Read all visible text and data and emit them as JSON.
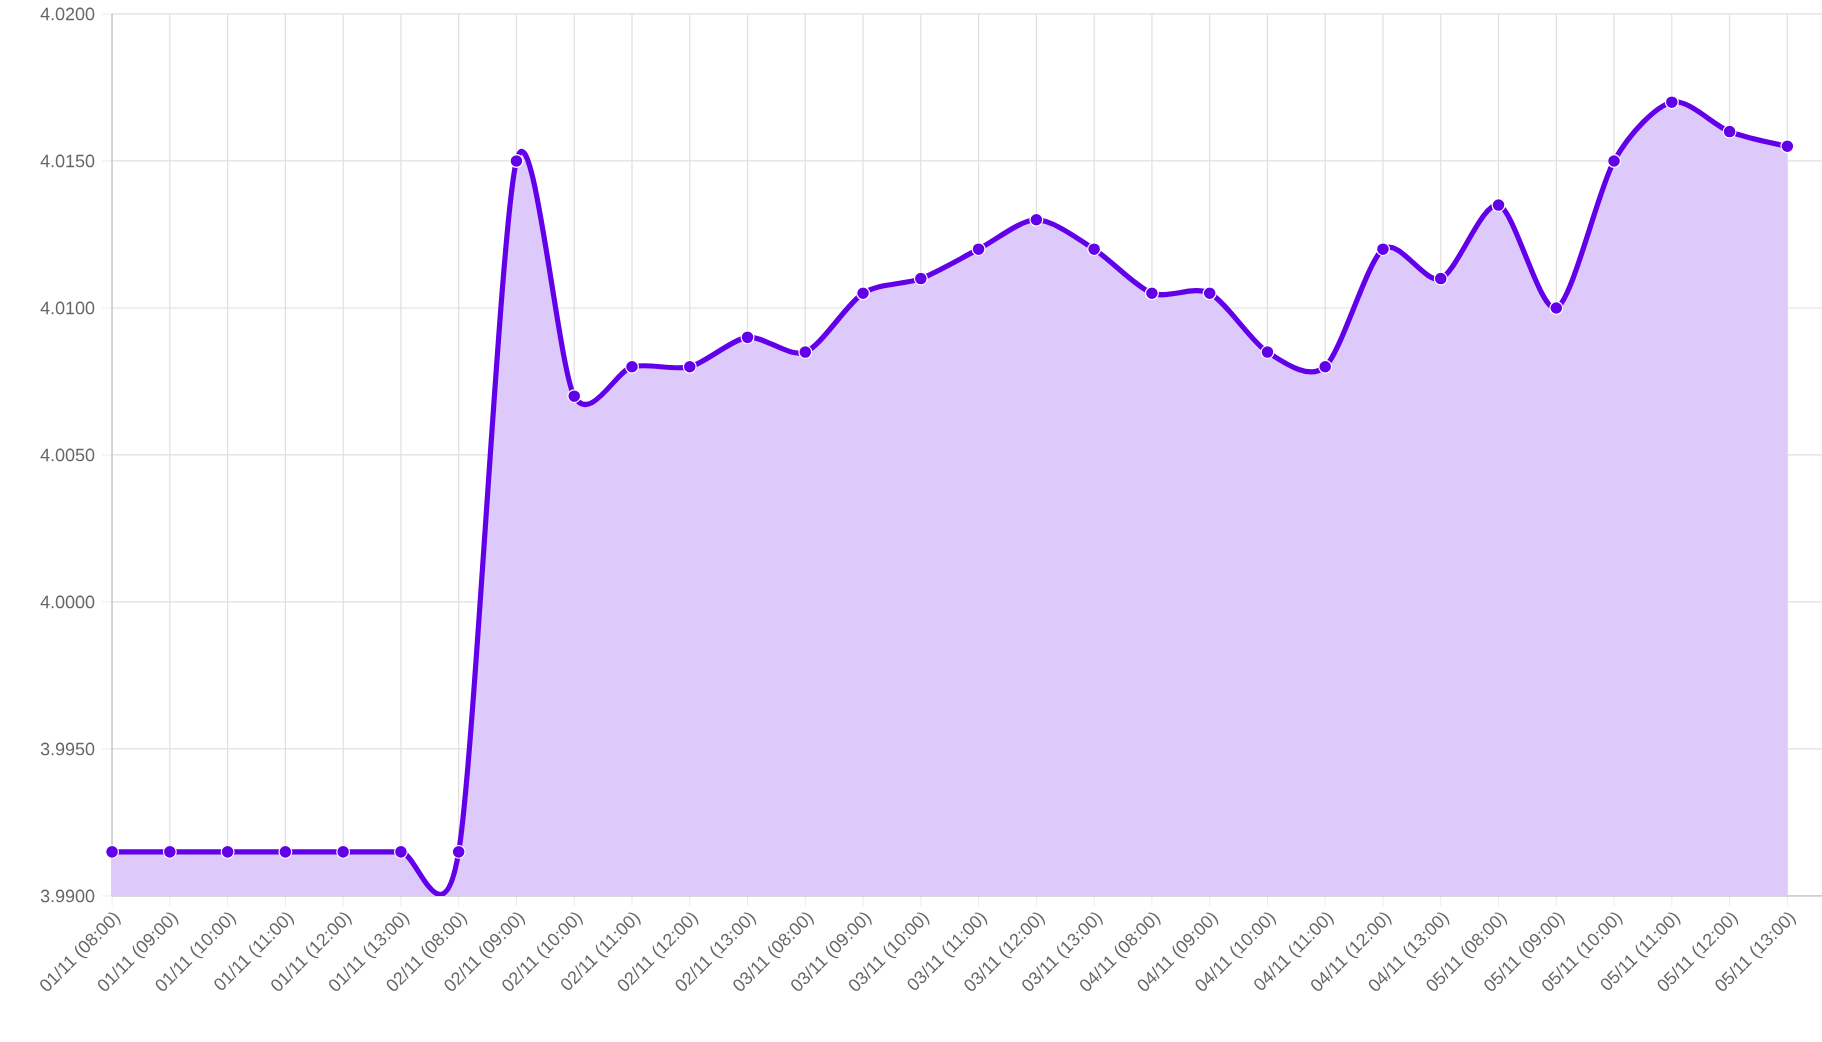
{
  "chart_data": {
    "type": "area",
    "color": "#6200ea",
    "marker": "circle",
    "grid": true,
    "categories": [
      "01/11 (08:00)",
      "01/11 (09:00)",
      "01/11 (10:00)",
      "01/11 (11:00)",
      "01/11 (12:00)",
      "01/11 (13:00)",
      "02/11 (08:00)",
      "02/11 (09:00)",
      "02/11 (10:00)",
      "02/11 (11:00)",
      "02/11 (12:00)",
      "02/11 (13:00)",
      "03/11 (08:00)",
      "03/11 (09:00)",
      "03/11 (10:00)",
      "03/11 (11:00)",
      "03/11 (12:00)",
      "03/11 (13:00)",
      "04/11 (08:00)",
      "04/11 (09:00)",
      "04/11 (10:00)",
      "04/11 (11:00)",
      "04/11 (12:00)",
      "04/11 (13:00)",
      "05/11 (08:00)",
      "05/11 (09:00)",
      "05/11 (10:00)",
      "05/11 (11:00)",
      "05/11 (12:00)",
      "05/11 (13:00)"
    ],
    "values": [
      3.9915,
      3.9915,
      3.9915,
      3.9915,
      3.9915,
      3.9915,
      3.9915,
      4.015,
      4.007,
      4.008,
      4.008,
      4.009,
      4.0085,
      4.0105,
      4.011,
      4.012,
      4.013,
      4.012,
      4.0105,
      4.0105,
      4.0085,
      4.008,
      4.012,
      4.011,
      4.0135,
      4.01,
      4.015,
      4.017,
      4.016,
      4.0155
    ],
    "ylim": [
      3.99,
      4.02
    ],
    "yticks": [
      {
        "value": 3.99,
        "label": "3.9900"
      },
      {
        "value": 3.995,
        "label": "3.9950"
      },
      {
        "value": 4.0,
        "label": "4.0000"
      },
      {
        "value": 4.005,
        "label": "4.0050"
      },
      {
        "value": 4.01,
        "label": "4.0100"
      },
      {
        "value": 4.015,
        "label": "4.0150"
      },
      {
        "value": 4.02,
        "label": "4.0200"
      }
    ]
  }
}
